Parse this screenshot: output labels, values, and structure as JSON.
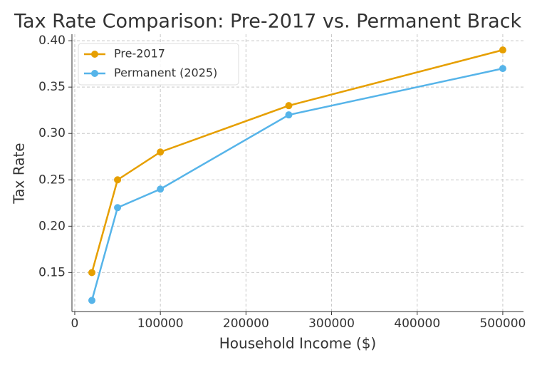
{
  "chart_data": {
    "type": "line",
    "title": "Tax Rate Comparison: Pre-2017 vs. Permanent Brack",
    "x_label": "Household Income ($)",
    "y_label": "Tax Rate",
    "x": [
      20000,
      50000,
      100000,
      250000,
      500000
    ],
    "series": [
      {
        "name": "Pre-2017",
        "color": "#e69f00",
        "values": [
          0.15,
          0.25,
          0.28,
          0.33,
          0.39
        ]
      },
      {
        "name": "Permanent (2025)",
        "color": "#56b4e9",
        "values": [
          0.12,
          0.22,
          0.24,
          0.32,
          0.37
        ]
      }
    ],
    "xlim": [
      -3300,
      524200
    ],
    "xticks": [
      0,
      100000,
      200000,
      300000,
      400000,
      500000
    ],
    "ylim": [
      0.108,
      0.407
    ],
    "yticks": [
      0.15,
      {
        "value": 0.2,
        "label": "0.20"
      },
      0.25,
      {
        "value": 0.3,
        "label": "0.30"
      },
      0.35,
      {
        "value": 0.4,
        "label": "0.40"
      }
    ],
    "grid": true,
    "legend": "upper left"
  }
}
